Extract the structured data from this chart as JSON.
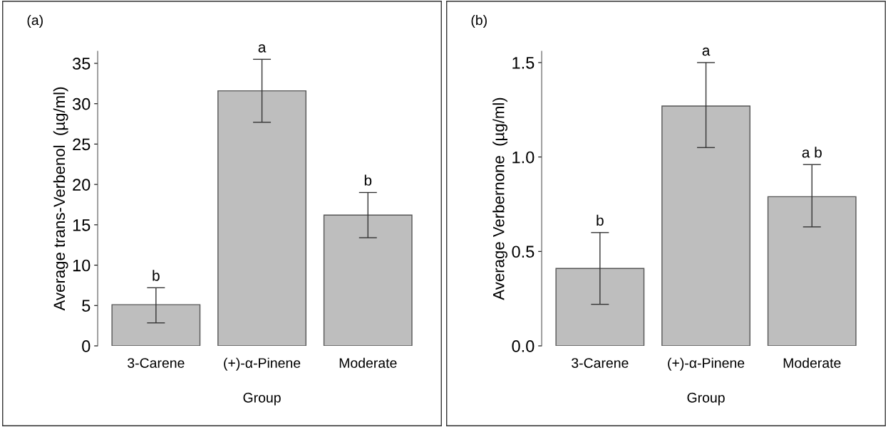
{
  "chart_data": [
    {
      "type": "bar",
      "title": "(a)",
      "xlabel": "Group",
      "ylabel": "Average trans-Verbenol  (µg/ml)",
      "categories": [
        "3-Carene",
        "(+)-α-Pinene",
        "Moderate"
      ],
      "series": [
        {
          "color": "#bebebe",
          "values": [
            5.1,
            31.6,
            16.2
          ],
          "errors": [
            [
              2.85,
              7.2
            ],
            [
              27.7,
              35.5
            ],
            [
              13.4,
              19.0
            ]
          ]
        }
      ],
      "ylim": [
        0,
        36.5
      ],
      "yticks": [
        0,
        5,
        10,
        15,
        20,
        25,
        30,
        35
      ],
      "grid": false,
      "legend": false,
      "annotations": [
        {
          "text": "b",
          "x": "3-Carene",
          "y": 7.2
        },
        {
          "text": "a",
          "x": "(+)-α-Pinene",
          "y": 35.5
        },
        {
          "text": "b",
          "x": "Moderate",
          "y": 19.0
        }
      ]
    },
    {
      "type": "bar",
      "title": "(b)",
      "xlabel": "Group",
      "ylabel": "Average Verbernone  (µg/ml)",
      "categories": [
        "3-Carene",
        "(+)-α-Pinene",
        "Moderate"
      ],
      "series": [
        {
          "color": "#bebebe",
          "values": [
            0.41,
            1.27,
            0.79
          ],
          "errors": [
            [
              0.22,
              0.6
            ],
            [
              1.05,
              1.5
            ],
            [
              0.63,
              0.96
            ]
          ]
        }
      ],
      "ylim": [
        0,
        1.56
      ],
      "yticks": [
        {
          "value": 0,
          "label": "0.0"
        },
        0.5,
        {
          "value": 1,
          "label": "1.0"
        },
        1.5
      ],
      "grid": false,
      "legend": false,
      "annotations": [
        {
          "text": "b",
          "x": "3-Carene",
          "y": 0.6
        },
        {
          "text": "a",
          "x": "(+)-α-Pinene",
          "y": 1.5
        },
        {
          "text": "a b",
          "x": "Moderate",
          "y": 0.96
        }
      ]
    }
  ]
}
